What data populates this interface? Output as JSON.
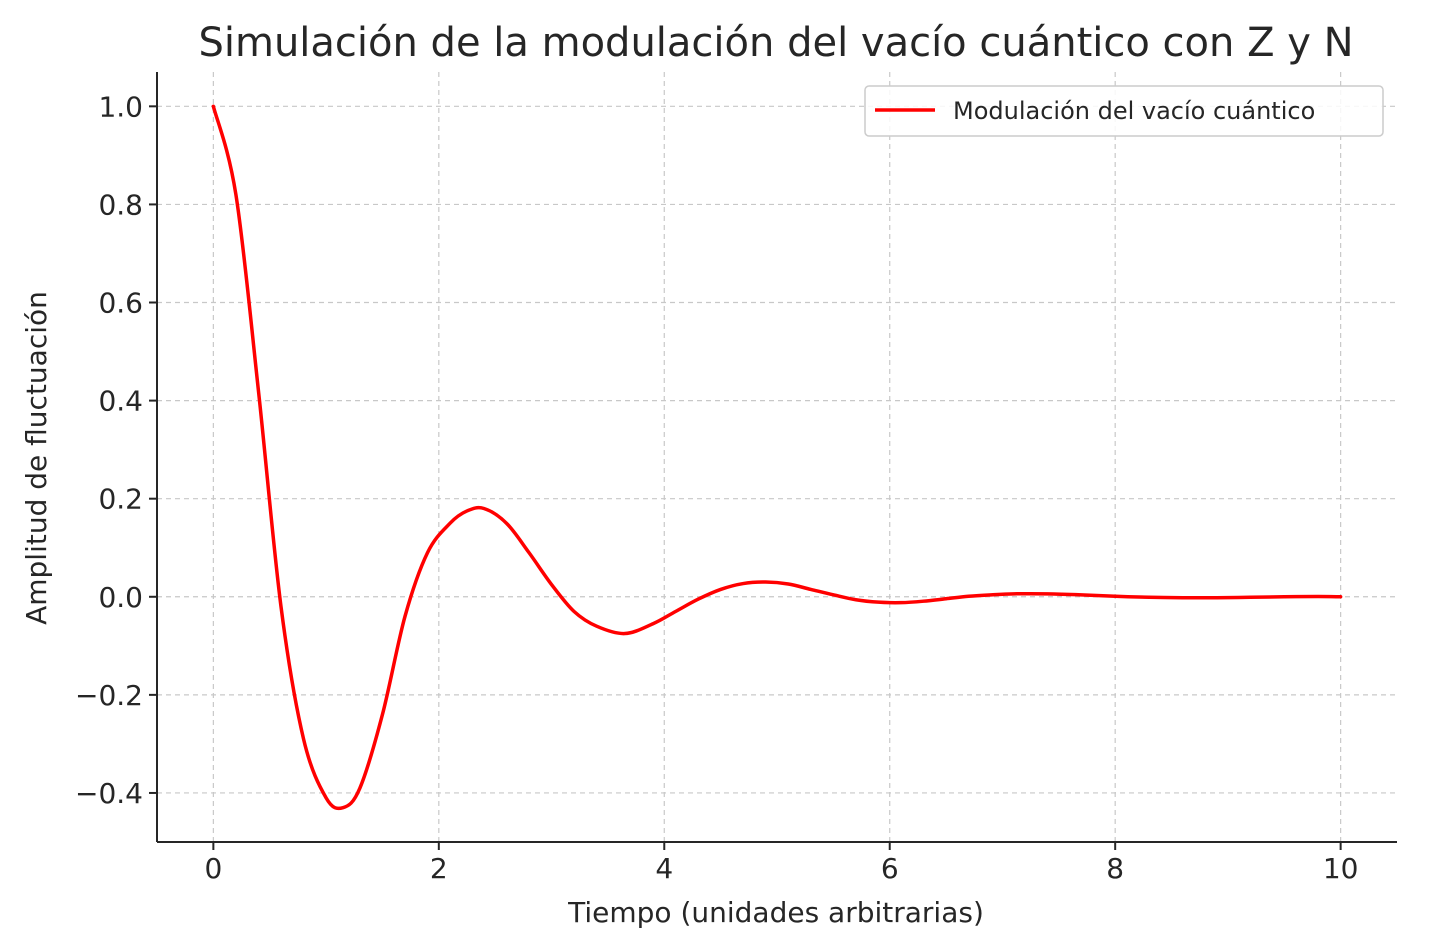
{
  "chart_data": {
    "type": "line",
    "title": "Simulación de la modulación del vacío cuántico con Z y N",
    "xlabel": "Tiempo (unidades arbitrarias)",
    "ylabel": "Amplitud de fluctuación",
    "xlim": [
      -0.5,
      10.5
    ],
    "ylim": [
      -0.5,
      1.07
    ],
    "xticks": [
      0,
      2,
      4,
      6,
      8,
      10
    ],
    "xtick_labels": [
      "0",
      "2",
      "4",
      "6",
      "8",
      "10"
    ],
    "yticks": [
      1.0,
      0.8,
      0.6,
      0.4,
      0.2,
      0.0,
      -0.2,
      -0.4
    ],
    "ytick_labels": [
      "1.0",
      "0.8",
      "0.6",
      "0.4",
      "0.2",
      "0.0",
      "−0.2",
      "−0.4"
    ],
    "grid": true,
    "legend_position": "top-right",
    "series": [
      {
        "name": "Modulación del vacío cuántico",
        "color": "#ff0000",
        "x": [
          0,
          0.2,
          0.4,
          0.6,
          0.8,
          1.0,
          1.15,
          1.3,
          1.5,
          1.7,
          1.9,
          2.1,
          2.25,
          2.4,
          2.6,
          2.8,
          3.0,
          3.2,
          3.4,
          3.65,
          3.9,
          4.1,
          4.3,
          4.5,
          4.7,
          4.9,
          5.1,
          5.3,
          5.5,
          5.7,
          5.9,
          6.1,
          6.3,
          6.5,
          6.7,
          6.9,
          7.1,
          7.4,
          7.7,
          8.0,
          8.3,
          8.6,
          8.9,
          9.2,
          9.5,
          9.8,
          10.0
        ],
        "y": [
          1.0,
          0.82,
          0.42,
          -0.02,
          -0.29,
          -0.41,
          -0.43,
          -0.39,
          -0.24,
          -0.04,
          0.09,
          0.15,
          0.175,
          0.18,
          0.15,
          0.09,
          0.025,
          -0.03,
          -0.06,
          -0.075,
          -0.055,
          -0.03,
          -0.005,
          0.015,
          0.027,
          0.03,
          0.026,
          0.015,
          0.004,
          -0.006,
          -0.011,
          -0.012,
          -0.009,
          -0.004,
          0.001,
          0.004,
          0.006,
          0.006,
          0.004,
          0.001,
          -0.001,
          -0.002,
          -0.002,
          -0.001,
          0.0,
          0.0005,
          0.0
        ]
      }
    ]
  }
}
